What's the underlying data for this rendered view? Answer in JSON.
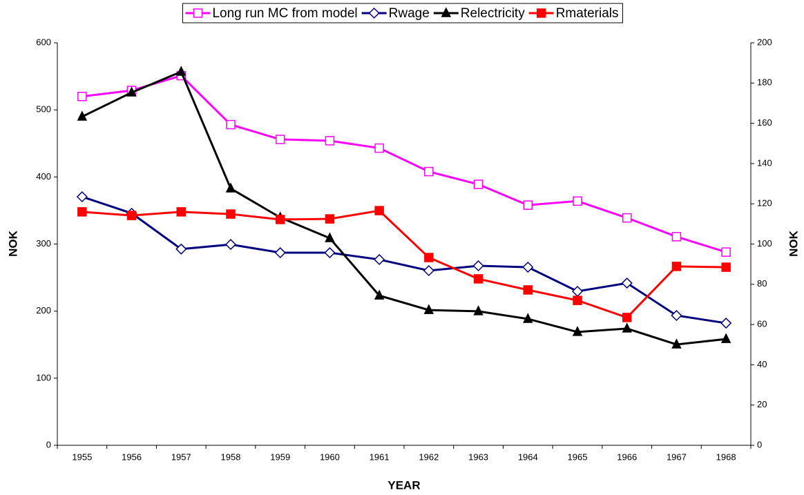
{
  "chart_data": {
    "type": "line",
    "x_label": "YEAR",
    "y_label": "NOK",
    "y2_label": "NOK",
    "categories": [
      "1955",
      "1956",
      "1957",
      "1958",
      "1959",
      "1960",
      "1961",
      "1962",
      "1963",
      "1964",
      "1965",
      "1966",
      "1967",
      "1968"
    ],
    "ylim": [
      0,
      600
    ],
    "yticks": [
      0,
      100,
      200,
      300,
      400,
      500,
      600
    ],
    "y2lim": [
      0,
      200
    ],
    "y2ticks": [
      0,
      20,
      40,
      60,
      80,
      100,
      120,
      140,
      160,
      180,
      200
    ],
    "grid": false,
    "legend": "top",
    "series": [
      {
        "name": "Long run MC from model",
        "color": "#ff00ff",
        "marker": "square",
        "marker_filled": false,
        "axis": "y",
        "values": [
          520,
          529,
          551,
          478,
          456,
          454,
          443,
          408,
          389,
          358,
          364,
          339,
          311,
          288
        ]
      },
      {
        "name": "Rwage",
        "color": "#000080",
        "marker": "diamond",
        "marker_filled": false,
        "axis": "y2",
        "values": [
          123.5,
          115.3,
          97.5,
          99.8,
          95.7,
          95.7,
          92.3,
          86.8,
          89.2,
          88.5,
          76.5,
          80.6,
          64.5,
          60.7
        ]
      },
      {
        "name": "Relectricity",
        "color": "#000000",
        "marker": "triangle",
        "marker_filled": true,
        "axis": "y2",
        "values": [
          163.3,
          175.3,
          185.6,
          127.6,
          113.2,
          102.9,
          74.4,
          67.2,
          66.6,
          62.8,
          56.3,
          58.0,
          50.1,
          52.8
        ]
      },
      {
        "name": "Rmaterials",
        "color": "#ff0000",
        "marker": "square",
        "marker_filled": true,
        "axis": "y2",
        "values": [
          116,
          114.2,
          116,
          114.9,
          112.2,
          112.5,
          116.6,
          93.3,
          82.7,
          77.2,
          72,
          63.5,
          88.9,
          88.5
        ]
      }
    ]
  }
}
